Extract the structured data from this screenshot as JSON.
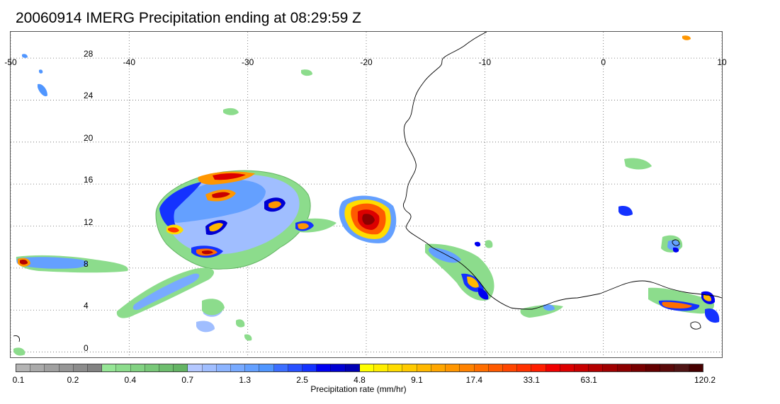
{
  "title": "20060914 IMERG Precipitation ending at 08:29:59 Z",
  "map": {
    "lon_range": [
      -50,
      10
    ],
    "lat_range": [
      -0.5,
      30.5
    ],
    "lon_ticks": [
      "-50",
      "-40",
      "-30",
      "-20",
      "-10",
      "0",
      "10"
    ],
    "lon_values": [
      -50,
      -40,
      -30,
      -20,
      -10,
      0,
      10
    ],
    "lat_ticks": [
      "0",
      "4",
      "8",
      "12",
      "16",
      "20",
      "24",
      "28"
    ],
    "lat_values": [
      0,
      4,
      8,
      12,
      16,
      20,
      24,
      28
    ],
    "grid": "dotted",
    "coastline_color": "#000000"
  },
  "colorbar": {
    "title": "Precipitation rate (mm/hr)",
    "tick_labels": [
      "0.1",
      "0.2",
      "0.4",
      "0.7",
      "1.3",
      "2.5",
      "4.8",
      "9.1",
      "17.4",
      "33.1",
      "63.1",
      "120.2"
    ],
    "colors": [
      "#b4b4b4",
      "#aaaaaa",
      "#a0a0a0",
      "#969696",
      "#8c8c8c",
      "#828282",
      "#96e696",
      "#8cdc8c",
      "#82d282",
      "#78c878",
      "#6ebe6e",
      "#64b464",
      "#b4c8ff",
      "#a0beff",
      "#8cb4ff",
      "#78aaff",
      "#64a0ff",
      "#5096ff",
      "#3c6eff",
      "#2850ff",
      "#1432ff",
      "#0000f0",
      "#0000d2",
      "#0000b4",
      "#ffff00",
      "#ffee00",
      "#ffdc00",
      "#ffca00",
      "#ffb800",
      "#ffa600",
      "#ff9600",
      "#ff8200",
      "#ff6e00",
      "#ff5a00",
      "#ff4600",
      "#ff3200",
      "#ff1e00",
      "#f00000",
      "#dc0000",
      "#c80000",
      "#b40000",
      "#a00000",
      "#8c0000",
      "#780000",
      "#640000",
      "#5a0a0a",
      "#501414",
      "#460000"
    ]
  }
}
